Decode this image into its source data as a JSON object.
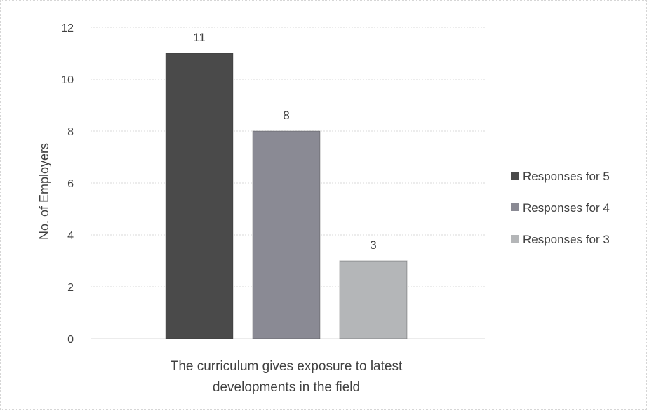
{
  "chart_data": {
    "type": "bar",
    "title": "",
    "categories": [
      "The curriculum gives exposure to latest developments in the field"
    ],
    "category_lines": [
      "The curriculum gives exposure to latest",
      "developments in the field"
    ],
    "xlabel": "",
    "ylabel": "No. of Employers",
    "ylim": [
      0,
      12
    ],
    "yticks": [
      0,
      2,
      4,
      6,
      8,
      10,
      12
    ],
    "grid": true,
    "legend_position": "right",
    "series": [
      {
        "name": "Responses for 5",
        "values": [
          11
        ],
        "color": "#4a4a4a"
      },
      {
        "name": "Responses for 4",
        "values": [
          8
        ],
        "color": "#8a8a94"
      },
      {
        "name": "Responses for 3",
        "values": [
          3
        ],
        "color": "#b4b6b8"
      }
    ]
  }
}
